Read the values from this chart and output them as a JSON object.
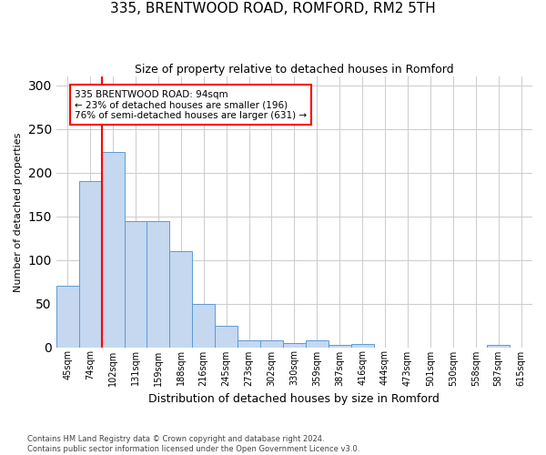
{
  "title": "335, BRENTWOOD ROAD, ROMFORD, RM2 5TH",
  "subtitle": "Size of property relative to detached houses in Romford",
  "xlabel": "Distribution of detached houses by size in Romford",
  "ylabel": "Number of detached properties",
  "bar_color": "#c5d8f0",
  "bar_edge_color": "#5b9bd5",
  "categories": [
    "45sqm",
    "74sqm",
    "102sqm",
    "131sqm",
    "159sqm",
    "188sqm",
    "216sqm",
    "245sqm",
    "273sqm",
    "302sqm",
    "330sqm",
    "359sqm",
    "387sqm",
    "416sqm",
    "444sqm",
    "473sqm",
    "501sqm",
    "530sqm",
    "558sqm",
    "587sqm",
    "615sqm"
  ],
  "values": [
    70,
    190,
    224,
    144,
    144,
    110,
    50,
    24,
    8,
    8,
    5,
    8,
    3,
    4,
    0,
    0,
    0,
    0,
    0,
    3,
    0
  ],
  "ylim": [
    0,
    310
  ],
  "yticks": [
    0,
    50,
    100,
    150,
    200,
    250,
    300
  ],
  "vline_x": 1.5,
  "annotation_text": "335 BRENTWOOD ROAD: 94sqm\n← 23% of detached houses are smaller (196)\n76% of semi-detached houses are larger (631) →",
  "annotation_box_color": "white",
  "annotation_box_edge_color": "red",
  "vline_color": "red",
  "footer_text": "Contains HM Land Registry data © Crown copyright and database right 2024.\nContains public sector information licensed under the Open Government Licence v3.0.",
  "background_color": "white",
  "grid_color": "#cccccc"
}
